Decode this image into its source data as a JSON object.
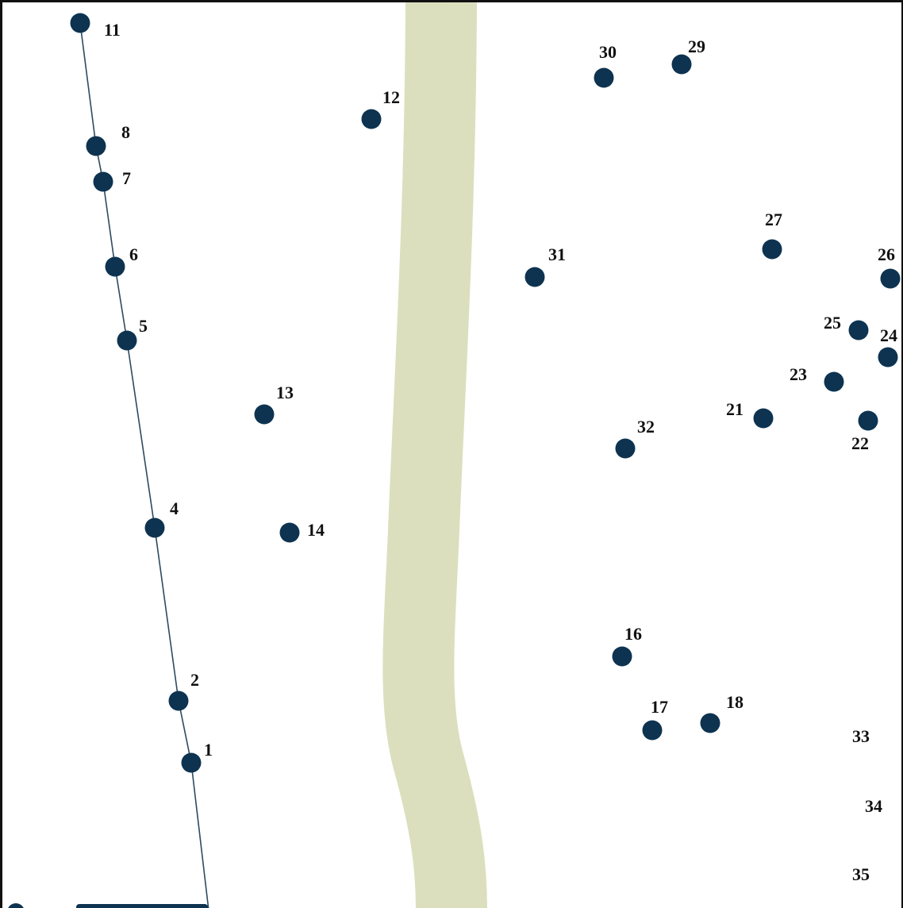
{
  "colors": {
    "background": "#ffffff",
    "border": "#111111",
    "river": "#dcdfbd",
    "point": "#0d3350",
    "line": "#2e4a60",
    "label": "#111111"
  },
  "points": [
    {
      "label": "11",
      "icon": "point-marker-icon"
    },
    {
      "label": "8",
      "icon": "point-marker-icon"
    },
    {
      "label": "7",
      "icon": "point-marker-icon"
    },
    {
      "label": "6",
      "icon": "point-marker-icon"
    },
    {
      "label": "5",
      "icon": "point-marker-icon"
    },
    {
      "label": "4",
      "icon": "point-marker-icon"
    },
    {
      "label": "2",
      "icon": "point-marker-icon"
    },
    {
      "label": "1",
      "icon": "point-marker-icon"
    },
    {
      "label": "12",
      "icon": "point-marker-icon"
    },
    {
      "label": "13",
      "icon": "point-marker-icon"
    },
    {
      "label": "14",
      "icon": "point-marker-icon"
    },
    {
      "label": "30",
      "icon": "point-marker-icon"
    },
    {
      "label": "29",
      "icon": "point-marker-icon"
    },
    {
      "label": "31",
      "icon": "point-marker-icon"
    },
    {
      "label": "27",
      "icon": "point-marker-icon"
    },
    {
      "label": "26",
      "icon": "point-marker-icon"
    },
    {
      "label": "25",
      "icon": "point-marker-icon"
    },
    {
      "label": "24",
      "icon": "point-marker-icon"
    },
    {
      "label": "23",
      "icon": "point-marker-icon"
    },
    {
      "label": "21",
      "icon": "point-marker-icon"
    },
    {
      "label": "22",
      "icon": "point-marker-icon"
    },
    {
      "label": "32",
      "icon": "point-marker-icon"
    },
    {
      "label": "16",
      "icon": "point-marker-icon"
    },
    {
      "label": "17",
      "icon": "point-marker-icon"
    },
    {
      "label": "18",
      "icon": "point-marker-icon"
    }
  ],
  "labels_only": [
    "33",
    "34",
    "35"
  ]
}
